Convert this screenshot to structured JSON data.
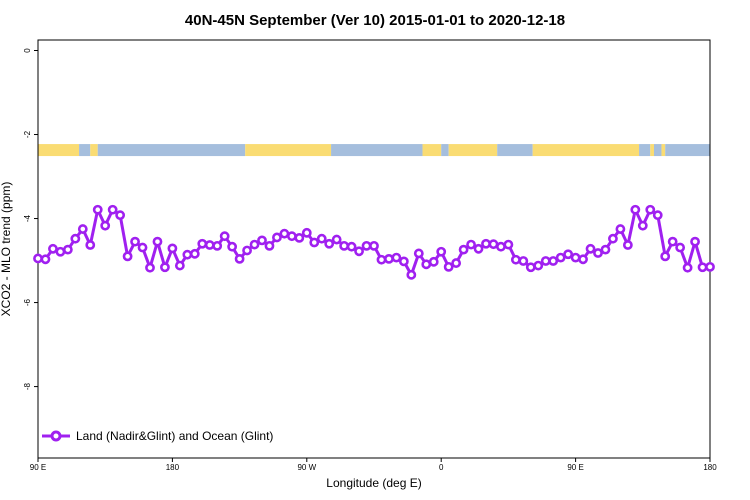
{
  "chart_data": {
    "type": "line",
    "title": "40N-45N September (Ver 10)   2015-01-01 to 2020-12-18",
    "xlabel": "Longitude (deg E)",
    "ylabel": "XCO2 - MLO trend (ppm)",
    "xlim": [
      90,
      450
    ],
    "ylim": [
      -9.7,
      0.25
    ],
    "x_ticks": [
      {
        "value": 90,
        "label": "90 E"
      },
      {
        "value": 162,
        "label": "180"
      },
      {
        "value": 234,
        "label": "90 W"
      },
      {
        "value": 306,
        "label": "0"
      },
      {
        "value": 378,
        "label": "90 E"
      },
      {
        "value": 450,
        "label": "180"
      }
    ],
    "y_ticks": [
      0,
      -2,
      -4,
      -6,
      -8
    ],
    "grid": false,
    "legend_position": "bottom-left",
    "series": [
      {
        "name": "Land (Nadir&Glint) and Ocean (Glint)",
        "color": "#a020f0",
        "x": [
          90,
          94,
          98,
          102,
          106,
          110,
          114,
          118,
          122,
          126,
          130,
          134,
          138,
          142,
          146,
          150,
          154,
          158,
          162,
          166,
          170,
          174,
          178,
          182,
          186,
          190,
          194,
          198,
          202,
          206,
          210,
          214,
          218,
          222,
          226,
          230,
          234,
          238,
          242,
          246,
          250,
          254,
          258,
          262,
          266,
          270,
          274,
          278,
          282,
          286,
          290,
          294,
          298,
          302,
          306,
          310,
          314,
          318,
          322,
          326,
          330,
          334,
          338,
          342,
          346,
          350,
          354,
          358,
          362,
          366,
          370,
          374,
          378,
          382,
          386,
          390,
          394,
          398,
          402,
          406,
          410,
          414,
          418,
          422,
          426,
          430,
          434,
          438,
          442,
          446,
          450
        ],
        "y": [
          -4.95,
          -4.97,
          -4.72,
          -4.79,
          -4.74,
          -4.48,
          -4.25,
          -4.63,
          -3.79,
          -4.17,
          -3.79,
          -3.92,
          -4.9,
          -4.55,
          -4.69,
          -5.17,
          -4.55,
          -5.16,
          -4.71,
          -5.12,
          -4.86,
          -4.84,
          -4.6,
          -4.63,
          -4.65,
          -4.42,
          -4.67,
          -4.96,
          -4.76,
          -4.62,
          -4.52,
          -4.65,
          -4.45,
          -4.36,
          -4.42,
          -4.46,
          -4.34,
          -4.57,
          -4.48,
          -4.6,
          -4.5,
          -4.65,
          -4.67,
          -4.78,
          -4.65,
          -4.65,
          -4.98,
          -4.96,
          -4.93,
          -5.02,
          -5.34,
          -4.83,
          -5.09,
          -5.03,
          -4.79,
          -5.15,
          -5.06,
          -4.74,
          -4.62,
          -4.72,
          -4.6,
          -4.61,
          -4.67,
          -4.62,
          -4.98,
          -5.01,
          -5.16,
          -5.12,
          -5.01,
          -5.01,
          -4.93,
          -4.85,
          -4.93,
          -4.97,
          -4.72,
          -4.82,
          -4.74,
          -4.48,
          -4.25,
          -4.63,
          -3.79,
          -4.17,
          -3.79,
          -3.92,
          -4.9,
          -4.55,
          -4.69,
          -5.17,
          -4.55,
          -5.16,
          -5.15
        ]
      }
    ],
    "surface_strip": {
      "y_value": -2.37,
      "land_color": "#fadc73",
      "ocean_color": "#a5bedd",
      "segments": [
        {
          "from": 90,
          "to": 112,
          "type": "land"
        },
        {
          "from": 112,
          "to": 118,
          "type": "ocean"
        },
        {
          "from": 118,
          "to": 122,
          "type": "land"
        },
        {
          "from": 122,
          "to": 201,
          "type": "ocean"
        },
        {
          "from": 201,
          "to": 247,
          "type": "land"
        },
        {
          "from": 247,
          "to": 296,
          "type": "ocean"
        },
        {
          "from": 296,
          "to": 306,
          "type": "land"
        },
        {
          "from": 306,
          "to": 310,
          "type": "ocean"
        },
        {
          "from": 310,
          "to": 336,
          "type": "land"
        },
        {
          "from": 336,
          "to": 355,
          "type": "ocean"
        },
        {
          "from": 355,
          "to": 412,
          "type": "land"
        },
        {
          "from": 412,
          "to": 418,
          "type": "ocean"
        },
        {
          "from": 418,
          "to": 420,
          "type": "land"
        },
        {
          "from": 420,
          "to": 424,
          "type": "ocean"
        },
        {
          "from": 424,
          "to": 426,
          "type": "land"
        },
        {
          "from": 426,
          "to": 450,
          "type": "ocean"
        }
      ]
    }
  }
}
